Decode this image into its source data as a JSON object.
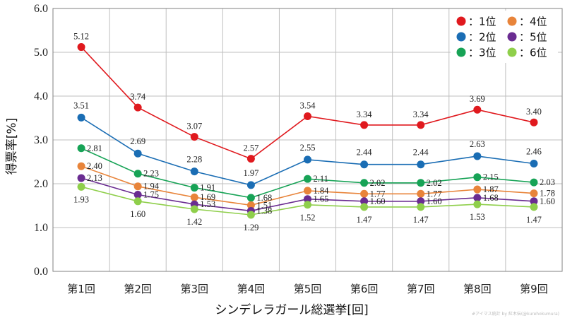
{
  "chart_data": {
    "type": "line",
    "categories": [
      "第1回",
      "第2回",
      "第3回",
      "第4回",
      "第5回",
      "第6回",
      "第7回",
      "第8回",
      "第9回"
    ],
    "xlabel": "シンデレラガール総選挙[回]",
    "ylabel": "得票率[%]",
    "ylim": [
      0,
      6
    ],
    "yticks": [
      "0.0",
      "1.0",
      "2.0",
      "3.0",
      "4.0",
      "5.0",
      "6.0"
    ],
    "grid": true,
    "legend_position": "top-right",
    "series": [
      {
        "name": "：1位",
        "color": "#e0191e",
        "values": [
          5.12,
          3.74,
          3.07,
          2.57,
          3.54,
          3.34,
          3.34,
          3.69,
          3.4
        ],
        "labels": [
          "5.12",
          "3.74",
          "3.07",
          "2.57",
          "3.54",
          "3.34",
          "3.34",
          "3.69",
          "3.40"
        ]
      },
      {
        "name": "：2位",
        "color": "#1a6db4",
        "values": [
          3.51,
          2.69,
          2.28,
          1.97,
          2.55,
          2.44,
          2.44,
          2.63,
          2.46
        ],
        "labels": [
          "3.51",
          "2.69",
          "2.28",
          "1.97",
          "2.55",
          "2.44",
          "2.44",
          "2.63",
          "2.46"
        ]
      },
      {
        "name": "：3位",
        "color": "#17a356",
        "values": [
          2.81,
          2.23,
          1.91,
          1.68,
          2.11,
          2.02,
          2.02,
          2.15,
          2.03
        ],
        "labels": [
          "2.81",
          "2.23",
          "1.91",
          "1.68",
          "2.11",
          "2.02",
          "2.02",
          "2.15",
          "2.03"
        ]
      },
      {
        "name": "：4位",
        "color": "#e8843a",
        "values": [
          2.4,
          1.94,
          1.69,
          1.51,
          1.84,
          1.77,
          1.77,
          1.87,
          1.78
        ],
        "labels": [
          "2.40",
          "1.94",
          "1.69",
          "1.51",
          "1.84",
          "1.77",
          "1.77",
          "1.87",
          "1.78"
        ]
      },
      {
        "name": "：5位",
        "color": "#6a2c91",
        "values": [
          2.13,
          1.75,
          1.53,
          1.38,
          1.65,
          1.6,
          1.6,
          1.68,
          1.6
        ],
        "labels": [
          "2.13",
          "1.75",
          "1.53",
          "1.38",
          "1.65",
          "1.60",
          "1.60",
          "1.68",
          "1.60"
        ]
      },
      {
        "name": "：6位",
        "color": "#8fcf4b",
        "values": [
          1.93,
          1.6,
          1.42,
          1.29,
          1.52,
          1.47,
          1.47,
          1.53,
          1.47
        ],
        "labels": [
          "1.93",
          "1.60",
          "1.42",
          "1.29",
          "1.52",
          "1.47",
          "1.47",
          "1.53",
          "1.47"
        ]
      }
    ]
  },
  "credit": "#アイマス統計 by 紅木伝(@kurehokumura)"
}
